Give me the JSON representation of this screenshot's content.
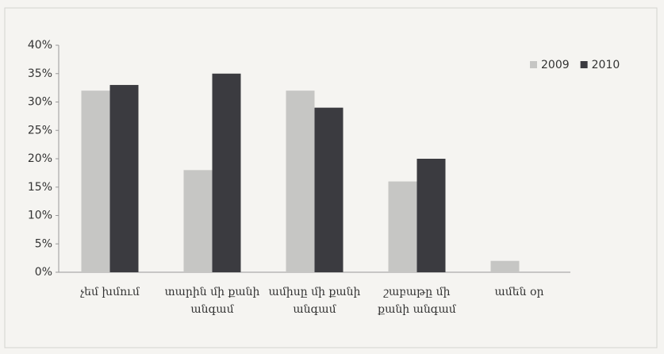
{
  "chart_data": {
    "type": "bar",
    "categories": [
      "չեմ խմում",
      "տարին մի քանի անգամ",
      "ամիսը մի քանի անգամ",
      "շաբաթը մի քանի անգամ",
      "ամեն օր"
    ],
    "series": [
      {
        "name": "2009",
        "color": "#c6c6c4",
        "values": [
          32,
          18,
          32,
          16,
          2
        ]
      },
      {
        "name": "2010",
        "color": "#3b3b40",
        "values": [
          33,
          35,
          29,
          20,
          0
        ]
      }
    ],
    "ylim": [
      0,
      40
    ],
    "yticks": [
      {
        "value": 0,
        "label": "0%"
      },
      {
        "value": 5,
        "label": "5%"
      },
      {
        "value": 10,
        "label": "10%"
      },
      {
        "value": 15,
        "label": "15%"
      },
      {
        "value": 20,
        "label": "20%"
      },
      {
        "value": 25,
        "label": "25%"
      },
      {
        "value": 30,
        "label": "30%"
      },
      {
        "value": 35,
        "label": "35%"
      },
      {
        "value": 40,
        "label": "40%"
      }
    ],
    "grid": false,
    "legend": "top-right"
  }
}
